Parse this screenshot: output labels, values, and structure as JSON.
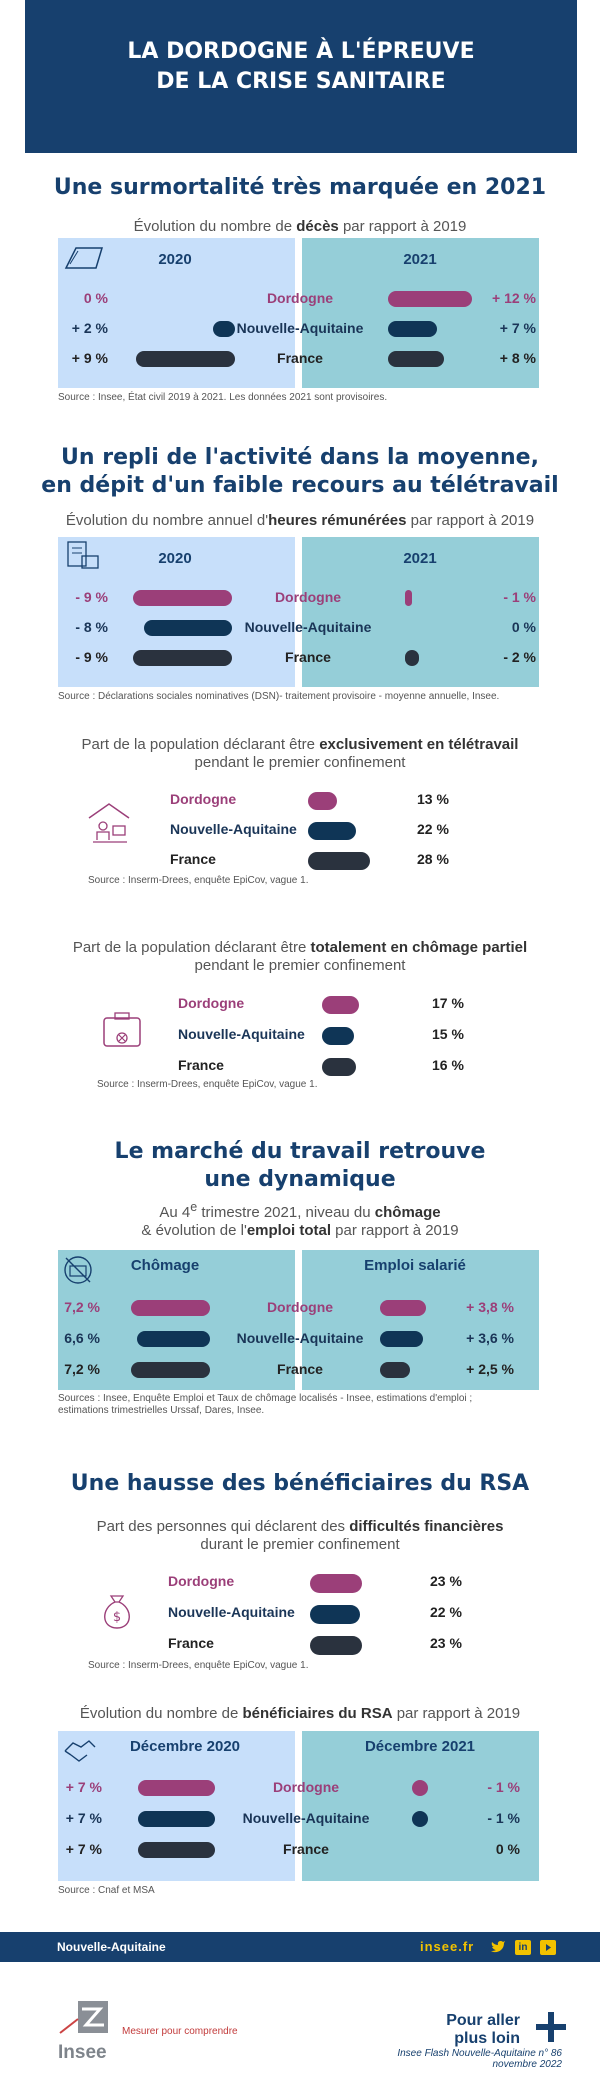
{
  "header": {
    "title_line1": "LA DORDOGNE À L'ÉPREUVE",
    "title_line2": "DE LA CRISE SANITAIRE"
  },
  "section1": {
    "title": "Une surmortalité très marquée en 2021",
    "subtitle_pre": "Évolution du nombre de ",
    "subtitle_bold": "décès",
    "subtitle_post": " par rapport à 2019",
    "col_left": "2020",
    "col_right": "2021",
    "rows": [
      {
        "label": "Dordogne",
        "left": "0 %",
        "right": "+ 12 %",
        "left_num": 0,
        "right_num": 12
      },
      {
        "label": "Nouvelle-Aquitaine",
        "left": "+ 2 %",
        "right": "+ 7 %",
        "left_num": 2,
        "right_num": 7
      },
      {
        "label": "France",
        "left": "+ 9 %",
        "right": "+ 8 %",
        "left_num": 9,
        "right_num": 8
      }
    ],
    "source": "Source : Insee, État civil 2019 à 2021. Les données 2021 sont provisoires."
  },
  "section2": {
    "title_line1": "Un repli de l'activité dans la moyenne,",
    "title_line2": "en dépit d'un faible recours au télétravail",
    "subtitle_pre": "Évolution du nombre annuel d'",
    "subtitle_bold": "heures rémunérées",
    "subtitle_post": " par rapport à 2019",
    "col_left": "2020",
    "col_right": "2021",
    "rows": [
      {
        "label": "Dordogne",
        "left": "- 9 %",
        "right": "- 1 %",
        "left_num": -9,
        "right_num": -1
      },
      {
        "label": "Nouvelle-Aquitaine",
        "left": "- 8 %",
        "right": "0 %",
        "left_num": -8,
        "right_num": 0
      },
      {
        "label": "France",
        "left": "- 9 %",
        "right": "- 2 %",
        "left_num": -9,
        "right_num": -2
      }
    ],
    "source": "Source : Déclarations sociales nominatives (DSN)- traitement provisoire - moyenne annuelle, Insee."
  },
  "telework": {
    "subtitle_pre": "Part de la population déclarant être ",
    "subtitle_bold": "exclusivement en télétravail",
    "subtitle_line2": "pendant le premier confinement",
    "rows": [
      {
        "label": "Dordogne",
        "value": "13 %",
        "num": 13
      },
      {
        "label": "Nouvelle-Aquitaine",
        "value": "22 %",
        "num": 22
      },
      {
        "label": "France",
        "value": "28 %",
        "num": 28
      }
    ],
    "source": "Source : Inserm-Drees, enquête EpiCov, vague 1."
  },
  "partial": {
    "subtitle_pre": "Part de la population déclarant être ",
    "subtitle_bold": "totalement en chômage partiel",
    "subtitle_line2": "pendant le premier confinement",
    "rows": [
      {
        "label": "Dordogne",
        "value": "17 %",
        "num": 17
      },
      {
        "label": "Nouvelle-Aquitaine",
        "value": "15 %",
        "num": 15
      },
      {
        "label": "France",
        "value": "16 %",
        "num": 16
      }
    ],
    "source": "Source : Inserm-Drees, enquête EpiCov, vague 1."
  },
  "section3": {
    "title_line1": "Le marché du travail retrouve",
    "title_line2": "une dynamique",
    "subtitle_pre": "Au 4",
    "subtitle_sup": "e",
    "subtitle_mid": " trimestre 2021, niveau du ",
    "subtitle_bold1": "chômage",
    "subtitle_line2_pre": "& évolution de l'",
    "subtitle_bold2": "emploi total",
    "subtitle_line2_post": " par rapport à 2019",
    "col_left": "Chômage",
    "col_right": "Emploi salarié",
    "rows": [
      {
        "label": "Dordogne",
        "left": "7,2 %",
        "right": "+ 3,8 %",
        "left_num": 7.2,
        "right_num": 3.8
      },
      {
        "label": "Nouvelle-Aquitaine",
        "left": "6,6 %",
        "right": "+ 3,6 %",
        "left_num": 6.6,
        "right_num": 3.6
      },
      {
        "label": "France",
        "left": "7,2 %",
        "right": "+ 2,5 %",
        "left_num": 7.2,
        "right_num": 2.5
      }
    ],
    "source_line1": "Sources :  Insee, Enquête Emploi et Taux de chômage localisés - Insee, estimations d'emploi ;",
    "source_line2": "estimations trimestrielles Urssaf, Dares, Insee."
  },
  "section4": {
    "title": "Une hausse des bénéficiaires du RSA",
    "subtitle_pre": "Part des personnes qui déclarent des ",
    "subtitle_bold": "difficultés financières",
    "subtitle_line2": "durant le premier confinement",
    "rows": [
      {
        "label": "Dordogne",
        "value": "23 %",
        "num": 23
      },
      {
        "label": "Nouvelle-Aquitaine",
        "value": "22 %",
        "num": 22
      },
      {
        "label": "France",
        "value": "23 %",
        "num": 23
      }
    ],
    "source": "Source : Inserm-Drees, enquête EpiCov, vague 1."
  },
  "rsa": {
    "subtitle_pre": "Évolution du nombre de ",
    "subtitle_bold": "bénéficiaires du RSA",
    "subtitle_post": " par rapport à 2019",
    "col_left": "Décembre 2020",
    "col_right": "Décembre 2021",
    "rows": [
      {
        "label": "Dordogne",
        "left": "+ 7 %",
        "right": "- 1 %",
        "left_num": 7,
        "right_num": -1
      },
      {
        "label": "Nouvelle-Aquitaine",
        "left": "+ 7 %",
        "right": "- 1 %",
        "left_num": 7,
        "right_num": -1
      },
      {
        "label": "France",
        "left": "+ 7 %",
        "right": "0 %",
        "left_num": 7,
        "right_num": 0
      }
    ],
    "source": "Source : Cnaf et MSA"
  },
  "footer": {
    "region": "Nouvelle-Aquitaine",
    "site": "insee.fr",
    "social": [
      "twitter-icon",
      "linkedin-icon",
      "youtube-icon"
    ],
    "linkedin_text": "in"
  },
  "bottom": {
    "logo_text": "Insee",
    "tagline": "Mesurer pour comprendre",
    "more_line1": "Pour aller",
    "more_line2": "plus loin",
    "ref_line1": "Insee Flash Nouvelle-Aquitaine n° 86",
    "ref_line2": "novembre 2022"
  },
  "colors": {
    "header_bg": "#17406e",
    "dordogne": "#9b3f79",
    "nouvelle_aquitaine": "#0f3556",
    "france": "#2a323e",
    "panel_left": "#c7dffa",
    "panel_right": "#95ced8",
    "accent": "#f2c200"
  }
}
